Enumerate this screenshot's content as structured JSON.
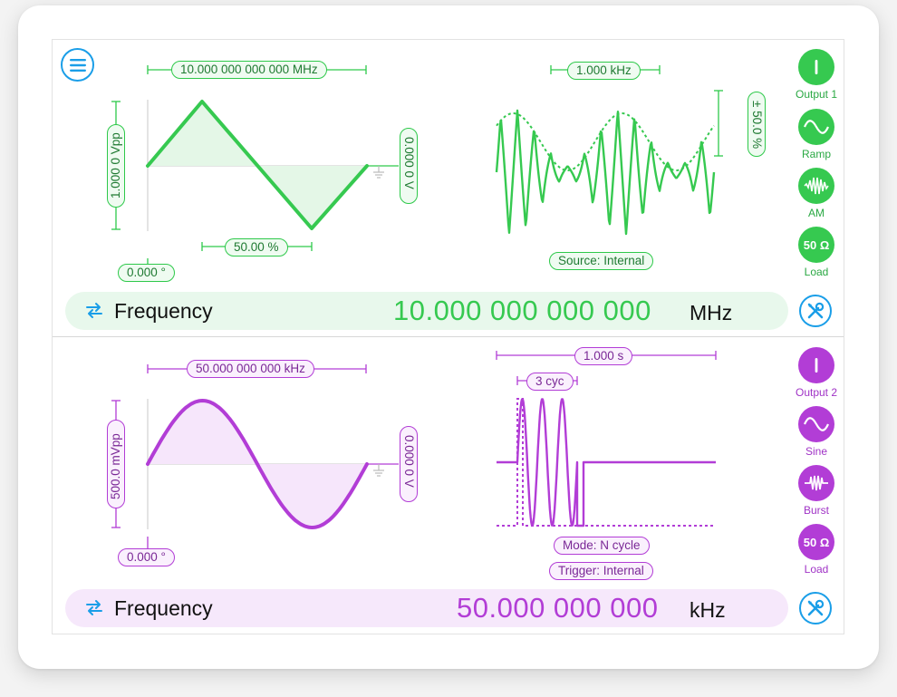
{
  "channel1": {
    "color": "#36c950",
    "period_label": "10.000 000 000 000 MHz",
    "amplitude_label": "1.000 0 Vpp",
    "offset_label": "0.000 0 V",
    "symmetry_label": "50.00 %",
    "phase_label": "0.000 °",
    "mod_freq_label": "1.000 kHz",
    "mod_depth_label": "± 50.0 %",
    "source_label": "Source: Internal",
    "side": [
      {
        "icon": "power-icon",
        "label": "Output 1"
      },
      {
        "icon": "ramp-wave-icon",
        "label": "Ramp"
      },
      {
        "icon": "am-mod-icon",
        "label": "AM"
      },
      {
        "icon": "load-icon",
        "text": "50 Ω",
        "label": "Load"
      }
    ],
    "param_name": "Frequency",
    "param_value": "10.000 000 000 000",
    "param_unit": "MHz"
  },
  "channel2": {
    "color": "#b23dd6",
    "period_label": "50.000 000 000 kHz",
    "amplitude_label": "500.0 mVpp",
    "offset_label": "0.000 0 V",
    "phase_label": "0.000 °",
    "burst_period_label": "1.000 s",
    "cycles_label": "3 cyc",
    "mode_label": "Mode: N cycle",
    "trigger_label": "Trigger: Internal",
    "side": [
      {
        "icon": "power-icon",
        "label": "Output 2"
      },
      {
        "icon": "sine-wave-icon",
        "label": "Sine"
      },
      {
        "icon": "burst-mod-icon",
        "label": "Burst"
      },
      {
        "icon": "load-icon",
        "text": "50 Ω",
        "label": "Load"
      }
    ],
    "param_name": "Frequency",
    "param_value": "50.000 000 000",
    "param_unit": "kHz"
  },
  "colors": {
    "accent_blue": "#1a9ee8",
    "green": "#36c950",
    "purple": "#b23dd6"
  }
}
